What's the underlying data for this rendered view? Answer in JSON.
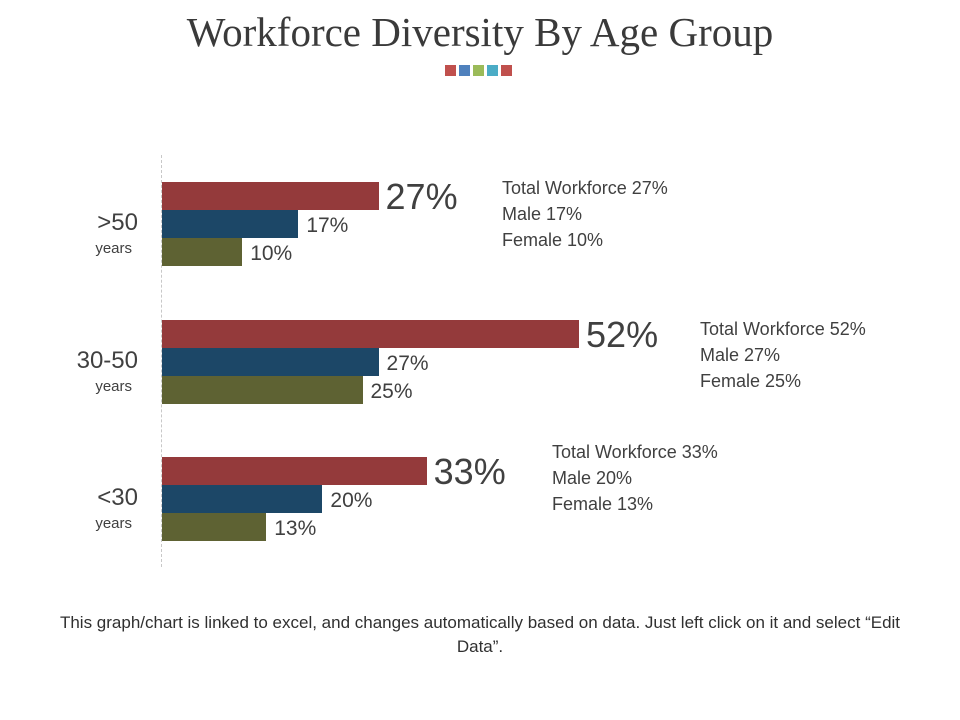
{
  "title": "Workforce Diversity By Age Group",
  "footer": "This graph/chart is linked to excel, and changes automatically based on data. Just left click on it and select “Edit Data”.",
  "colors": {
    "total": "#943a3b",
    "male": "#1c4767",
    "female": "#5e6233",
    "deco": [
      "#c0504d",
      "#4f81bd",
      "#9bbb59",
      "#4bacc6",
      "#c0504d"
    ]
  },
  "chart_data": {
    "type": "bar",
    "orientation": "horizontal",
    "categories": [
      ">50",
      "30-50",
      "<30"
    ],
    "category_sublabels": [
      "years",
      "years",
      "years"
    ],
    "series": [
      {
        "key": "total",
        "values": [
          27,
          52,
          33
        ],
        "labels": [
          "27%",
          "52%",
          "33%"
        ]
      },
      {
        "key": "male",
        "values": [
          17,
          27,
          20
        ],
        "labels": [
          "17%",
          "27%",
          "20%"
        ]
      },
      {
        "key": "female",
        "values": [
          10,
          25,
          13
        ],
        "labels": [
          "10%",
          "25%",
          "13%"
        ]
      }
    ],
    "summaries": [
      [
        "Total Workforce 27%",
        "Male 17%",
        "Female 10%"
      ],
      [
        "Total Workforce 52%",
        "Male 27%",
        "Female 25%"
      ],
      [
        "Total Workforce 33%",
        "Male 20%",
        "Female 13%"
      ]
    ],
    "xlim": [
      0,
      52
    ],
    "grid": false,
    "legend": "none"
  }
}
